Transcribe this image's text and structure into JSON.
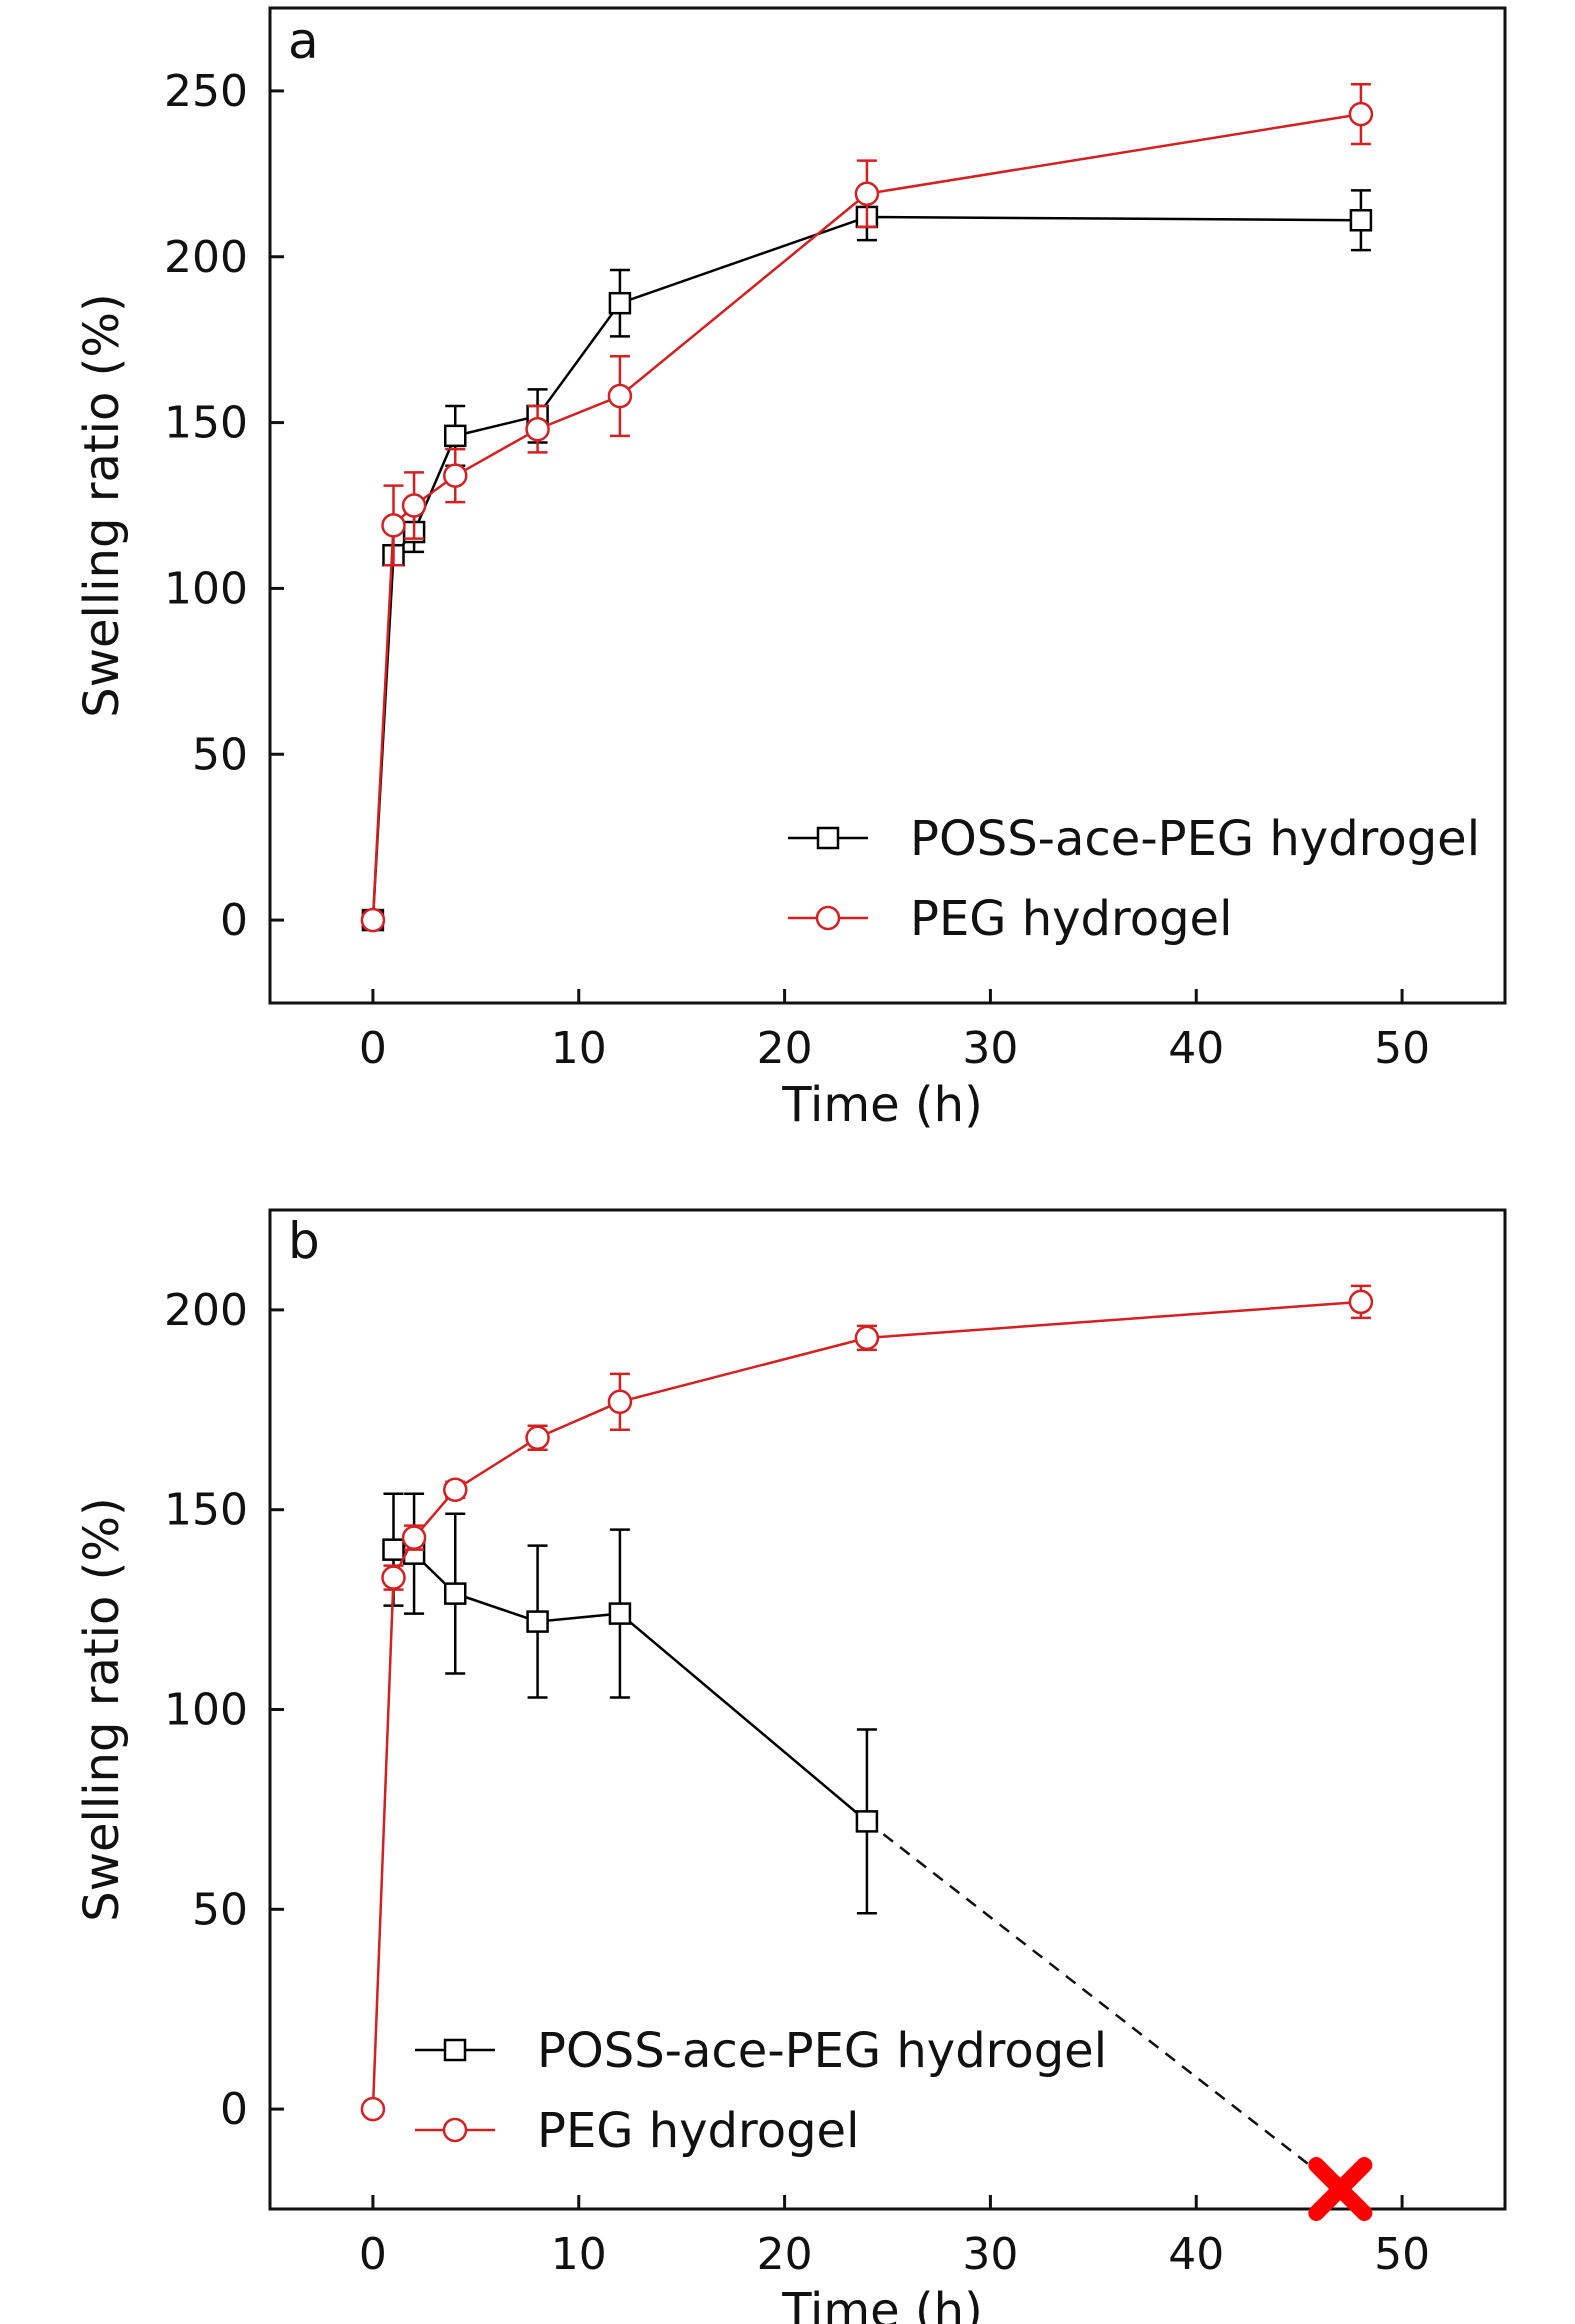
{
  "chart_data": [
    {
      "type": "line",
      "panel": "a",
      "xlabel": "Time (h)",
      "ylabel": "Swelling ratio (%)",
      "xlim": [
        -5,
        55
      ],
      "ylim": [
        -25,
        275
      ],
      "xticks": [
        0,
        10,
        20,
        30,
        40,
        50
      ],
      "yticks": [
        0,
        50,
        100,
        150,
        200,
        250
      ],
      "grid": false,
      "legend_position": "bottom-right",
      "series": [
        {
          "name": "POSS-ace-PEG hydrogel",
          "color": "#000000",
          "marker": "square",
          "x": [
            0,
            1,
            2,
            4,
            8,
            12,
            24,
            48
          ],
          "y": [
            0,
            110,
            117,
            146,
            152,
            186,
            212,
            211
          ],
          "err": [
            0,
            3,
            6,
            9,
            8,
            10,
            7,
            9
          ]
        },
        {
          "name": "PEG hydrogel",
          "color": "#d42020",
          "marker": "circle",
          "x": [
            0,
            1,
            2,
            4,
            8,
            12,
            24,
            48
          ],
          "y": [
            0,
            119,
            125,
            134,
            148,
            158,
            219,
            243
          ],
          "err": [
            0,
            12,
            10,
            8,
            7,
            12,
            10,
            9
          ]
        }
      ]
    },
    {
      "type": "line",
      "panel": "b",
      "xlabel": "Time (h)",
      "ylabel": "Swelling ratio (%)",
      "xlim": [
        -5,
        55
      ],
      "ylim": [
        -25,
        225
      ],
      "xticks": [
        0,
        10,
        20,
        30,
        40,
        50
      ],
      "yticks": [
        0,
        50,
        100,
        150,
        200
      ],
      "grid": false,
      "legend_position": "bottom-left",
      "series": [
        {
          "name": "POSS-ace-PEG hydrogel",
          "color": "#000000",
          "marker": "square",
          "x": [
            1,
            2,
            4,
            8,
            12,
            24
          ],
          "y": [
            140,
            139,
            129,
            122,
            124,
            72
          ],
          "err": [
            14,
            15,
            20,
            19,
            21,
            23
          ],
          "extrapolation": {
            "style": "dashed",
            "from": [
              24,
              72
            ],
            "to": [
              47,
              -20
            ],
            "end_marker": "red-x"
          }
        },
        {
          "name": "PEG hydrogel",
          "color": "#d42020",
          "marker": "circle",
          "x": [
            0,
            1,
            2,
            4,
            8,
            12,
            24,
            48
          ],
          "y": [
            0,
            133,
            143,
            155,
            168,
            177,
            193,
            202
          ],
          "err": [
            0,
            3,
            3,
            2,
            3,
            7,
            3,
            4
          ]
        }
      ]
    }
  ]
}
